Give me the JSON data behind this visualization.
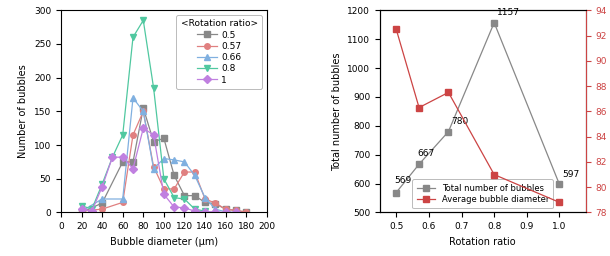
{
  "left_chart": {
    "title": "<Rotation ratio>",
    "xlabel": "Bubble diameter (μm)",
    "ylabel": "Number of bubbles",
    "xlim": [
      0,
      200
    ],
    "ylim": [
      0,
      300
    ],
    "xticks": [
      0,
      20,
      40,
      60,
      80,
      100,
      120,
      140,
      160,
      180,
      200
    ],
    "yticks": [
      0,
      50,
      100,
      150,
      200,
      250,
      300
    ],
    "series": [
      {
        "label": "0.5",
        "color": "#888888",
        "marker": "s",
        "markersize": 4,
        "x": [
          20,
          40,
          60,
          70,
          80,
          90,
          100,
          110,
          120,
          130,
          140,
          150,
          160,
          170,
          180
        ],
        "y": [
          0,
          14,
          75,
          75,
          155,
          105,
          110,
          55,
          25,
          25,
          15,
          13,
          5,
          3,
          0
        ]
      },
      {
        "label": "0.57",
        "color": "#e08080",
        "marker": "o",
        "markersize": 4,
        "x": [
          20,
          40,
          60,
          70,
          80,
          90,
          100,
          110,
          120,
          130,
          140,
          150,
          160,
          170,
          180
        ],
        "y": [
          2,
          5,
          15,
          115,
          150,
          68,
          35,
          35,
          60,
          60,
          20,
          14,
          5,
          3,
          1
        ]
      },
      {
        "label": "0.66",
        "color": "#80b0e0",
        "marker": "^",
        "markersize": 4,
        "x": [
          20,
          40,
          60,
          70,
          80,
          90,
          100,
          110,
          120,
          130,
          140,
          150,
          160,
          170
        ],
        "y": [
          2,
          20,
          20,
          170,
          150,
          65,
          80,
          78,
          75,
          55,
          22,
          5,
          1,
          0
        ]
      },
      {
        "label": "0.8",
        "color": "#50c8a0",
        "marker": "v",
        "markersize": 5,
        "x": [
          20,
          30,
          40,
          50,
          60,
          70,
          80,
          90,
          100,
          110,
          120,
          130,
          140
        ],
        "y": [
          10,
          5,
          42,
          82,
          115,
          260,
          285,
          185,
          50,
          22,
          20,
          5,
          2
        ]
      },
      {
        "label": "1",
        "color": "#c080e0",
        "marker": "D",
        "markersize": 4,
        "x": [
          20,
          30,
          40,
          50,
          60,
          70,
          80,
          90,
          100,
          110,
          120,
          130,
          140,
          150,
          160,
          170
        ],
        "y": [
          5,
          2,
          38,
          82,
          82,
          65,
          125,
          115,
          27,
          8,
          7,
          2,
          1,
          1,
          0,
          0
        ]
      }
    ]
  },
  "right_chart": {
    "xlabel": "Rotation ratio",
    "ylabel_left": "Total number of bubbles",
    "ylabel_right": "Average bubble diameter (μm)",
    "xlim": [
      0.45,
      1.08
    ],
    "ylim_left": [
      500,
      1200
    ],
    "ylim_right": [
      78,
      94
    ],
    "yticks_left": [
      500,
      600,
      700,
      800,
      900,
      1000,
      1100,
      1200
    ],
    "yticks_right": [
      78,
      80,
      82,
      84,
      86,
      88,
      90,
      92,
      94
    ],
    "xticks": [
      0.5,
      0.6,
      0.7,
      0.8,
      0.9,
      1.0
    ],
    "total_bubbles": {
      "label": "Total number of bubbles",
      "color": "#888888",
      "marker": "s",
      "markersize": 4,
      "x": [
        0.5,
        0.57,
        0.66,
        0.8,
        1.0
      ],
      "y": [
        569,
        667,
        780,
        1157,
        597
      ],
      "annotations": [
        "569",
        "667",
        "780",
        "1157",
        "597"
      ],
      "ann_offsets": [
        [
          -0.005,
          25
        ],
        [
          -0.005,
          20
        ],
        [
          0.01,
          20
        ],
        [
          0.01,
          20
        ],
        [
          0.01,
          20
        ]
      ]
    },
    "avg_diameter": {
      "label": "Average bubble diameter",
      "color": "#cc4444",
      "marker": "s",
      "markersize": 4,
      "x": [
        0.5,
        0.57,
        0.66,
        0.8,
        1.0
      ],
      "y": [
        92.5,
        86.3,
        87.5,
        81.0,
        78.8
      ]
    }
  }
}
